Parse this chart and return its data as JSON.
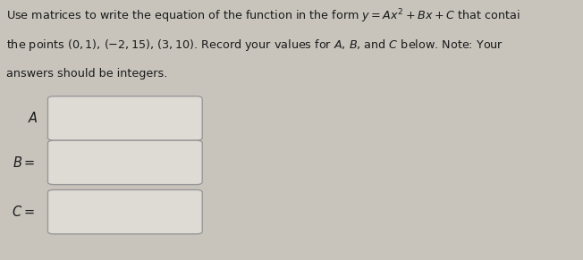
{
  "bg_color": "#c8c4bc",
  "text_color": "#1a1a1a",
  "title_line1": "Use matrices to write the equation of the function in the form $y = Ax^2 + Bx + C$ that contai",
  "title_line2": "the points $(0, 1)$, $(-2, 15)$, $(3, 10)$. Record your values for $A$, $B$, and $C$ below. Note: Your",
  "title_line3": "answers should be integers.",
  "labels": [
    "$A$",
    "$B =$",
    "$C =$"
  ],
  "box_facecolor": "#dedad4",
  "box_edgecolor": "#999999",
  "fig_width": 6.52,
  "fig_height": 2.91,
  "font_size_text": 9.2,
  "font_size_label": 10.5
}
